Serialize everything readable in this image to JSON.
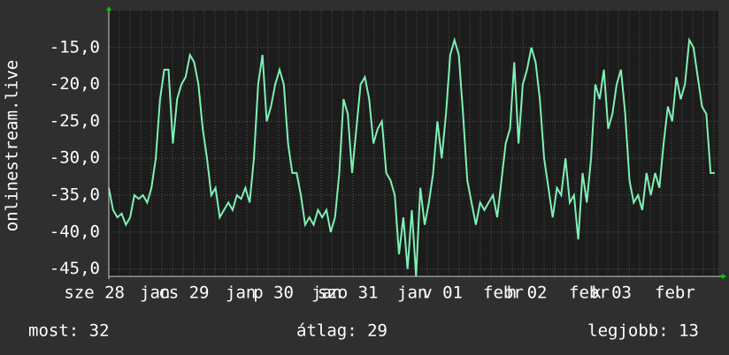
{
  "chart_data": {
    "type": "line",
    "y_label": "onlinestream.live",
    "ylim": [
      -46,
      -10
    ],
    "yticks": [
      {
        "value": -15,
        "label": "-15,0"
      },
      {
        "value": -20,
        "label": "-20,0"
      },
      {
        "value": -25,
        "label": "-25,0"
      },
      {
        "value": -30,
        "label": "-30,0"
      },
      {
        "value": -35,
        "label": "-35,0"
      },
      {
        "value": -40,
        "label": "-40,0"
      },
      {
        "value": -45,
        "label": "-45,0"
      }
    ],
    "day_labels": [
      "sze 28",
      "cs 29",
      "p 30",
      "szo 31",
      "v 01",
      "h 02",
      "k 03"
    ],
    "month_labels": [
      "jan",
      "jan",
      "jan",
      "jan",
      "febr",
      "febr",
      "febr"
    ],
    "color": "#7ff0b4",
    "grid": true,
    "values": [
      -34,
      -37,
      -38,
      -37.5,
      -39,
      -38,
      -35,
      -35.5,
      -35,
      -36,
      -34,
      -30,
      -22,
      -18,
      -18,
      -28,
      -22,
      -20,
      -19,
      -16,
      -17,
      -20,
      -26,
      -30,
      -35,
      -34,
      -38,
      -37,
      -36,
      -37,
      -35,
      -35.5,
      -34,
      -36,
      -30,
      -20,
      -16,
      -25,
      -23,
      -20,
      -18,
      -20,
      -28,
      -32,
      -32,
      -35,
      -39,
      -38,
      -39,
      -37,
      -38,
      -37,
      -40,
      -38,
      -32,
      -22,
      -24,
      -32,
      -26,
      -20,
      -19,
      -22,
      -28,
      -26,
      -25,
      -32,
      -33,
      -35,
      -43,
      -38,
      -45,
      -37,
      -46,
      -34,
      -39,
      -36,
      -32,
      -25,
      -30,
      -24,
      -16,
      -14,
      -16,
      -24,
      -33,
      -36,
      -39,
      -36,
      -37,
      -36,
      -35,
      -38,
      -33,
      -28,
      -26,
      -17,
      -28,
      -20,
      -18,
      -15,
      -17,
      -22,
      -30,
      -34,
      -38,
      -34,
      -35,
      -30,
      -36,
      -35,
      -41,
      -32,
      -36,
      -30,
      -20,
      -22,
      -18,
      -26,
      -24,
      -20,
      -18,
      -24,
      -33,
      -36,
      -35,
      -37,
      -32,
      -35,
      -32,
      -34,
      -28,
      -23,
      -25,
      -19,
      -22,
      -20,
      -14,
      -15,
      -19,
      -23,
      -24,
      -32,
      -32
    ]
  },
  "footer": {
    "current": "most: 32",
    "average": "átlag: 29",
    "best": "legjobb: 13"
  }
}
